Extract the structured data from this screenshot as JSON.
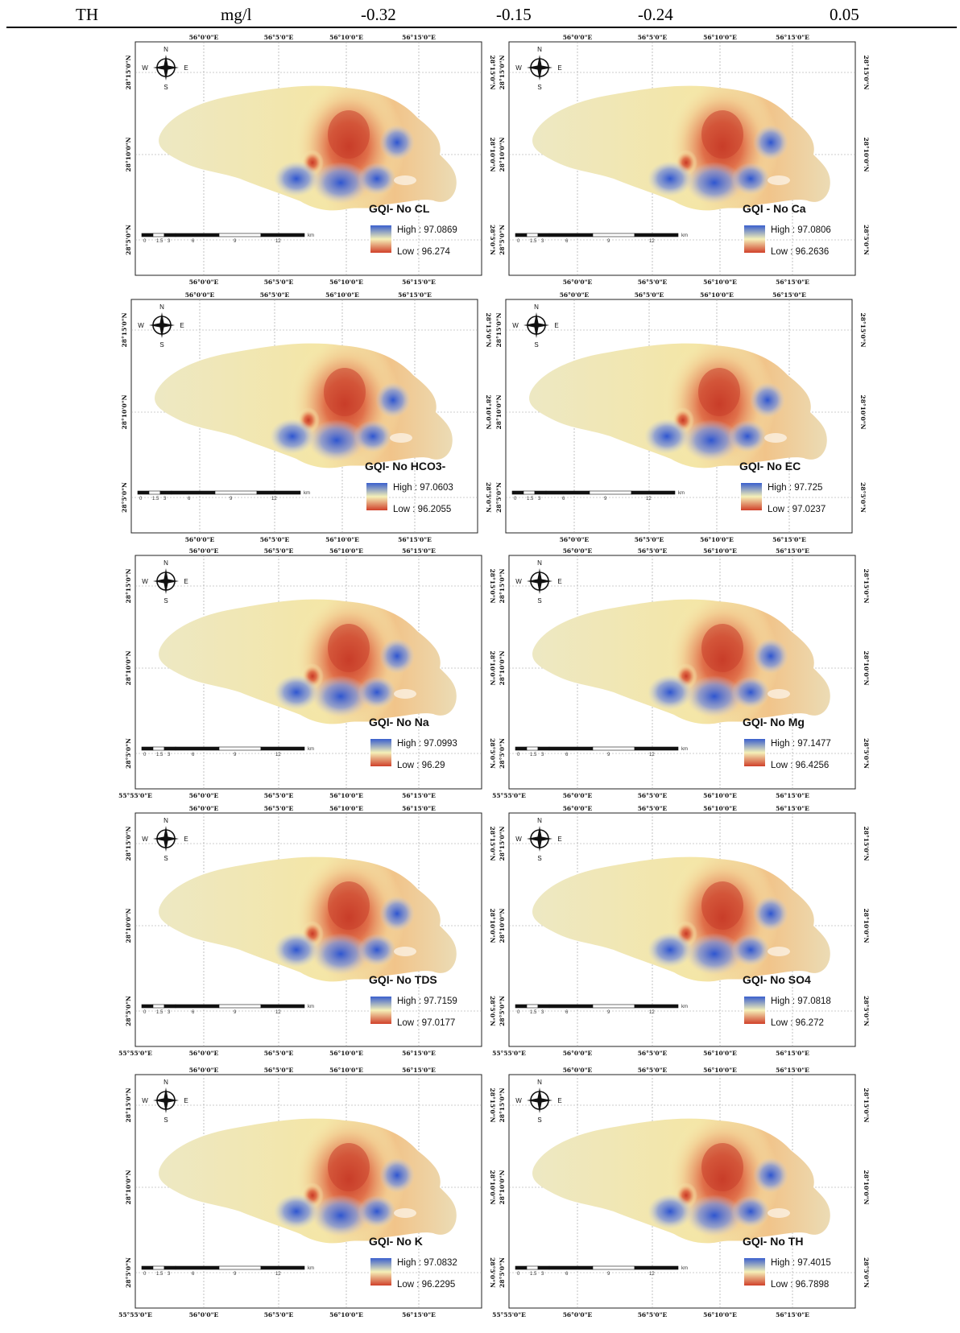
{
  "table_row": {
    "param": "TH",
    "unit": "mg/l",
    "v1": "-0.32",
    "v2": "-0.15",
    "v3": "-0.24",
    "v4": "0.05"
  },
  "ticks": {
    "lon": [
      "56°0'0\"E",
      "56°5'0\"E",
      "56°10'0\"E",
      "56°15'0\"E"
    ],
    "lon_extra": "55°55'0\"E",
    "lat": [
      "28°15'0\"N",
      "28°10'0\"N",
      "28°5'0\"N"
    ]
  },
  "compass": {
    "n": "N",
    "s": "S",
    "e": "E",
    "w": "W"
  },
  "scale": {
    "labels": [
      "0",
      "1.5",
      "3",
      "6",
      "9",
      "12"
    ],
    "unit": "km"
  },
  "colors": {
    "high": "#3a5fcd",
    "mid": "#f5f0b8",
    "low": "#d0402a",
    "land": "#ede9c8"
  },
  "maps": [
    {
      "title": "GQI- No CL",
      "high": "High : 97.0869",
      "low": "Low : 96.274"
    },
    {
      "title": "GQI - No Ca",
      "high": "High : 97.0806",
      "low": "Low : 96.2636"
    },
    {
      "title": "GQI- No HCO3-",
      "high": "High : 97.0603",
      "low": "Low : 96.2055"
    },
    {
      "title": "GQI- No EC",
      "high": "High : 97.725",
      "low": "Low : 97.0237"
    },
    {
      "title": "GQI- No Na",
      "high": "High : 97.0993",
      "low": "Low : 96.29"
    },
    {
      "title": "GQI- No Mg",
      "high": "High : 97.1477",
      "low": "Low : 96.4256"
    },
    {
      "title": "GQI- No TDS",
      "high": "High : 97.7159",
      "low": "Low : 97.0177"
    },
    {
      "title": "GQI- No SO4",
      "high": "High : 97.0818",
      "low": "Low : 96.272"
    },
    {
      "title": "GQI- No K",
      "high": "High : 97.0832",
      "low": "Low : 96.2295"
    },
    {
      "title": "GQI- No TH",
      "high": "High : 97.4015",
      "low": "Low : 96.7898"
    }
  ]
}
